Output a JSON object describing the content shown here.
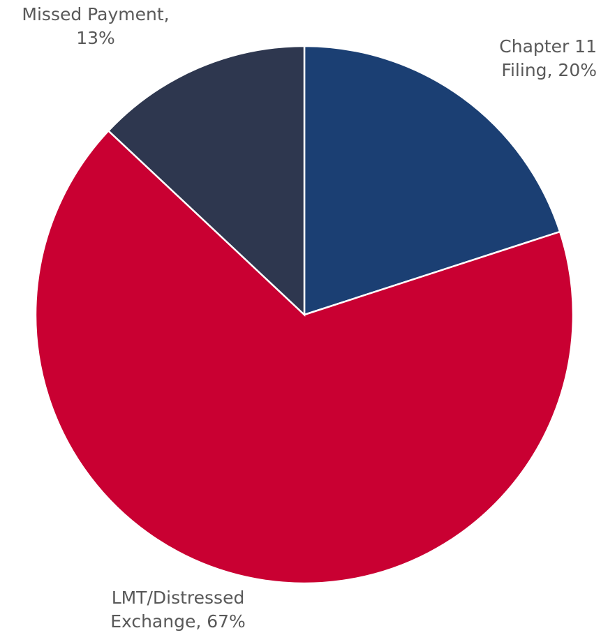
{
  "chart_data": {
    "type": "pie",
    "categories": [
      "Chapter 11 Filing",
      "LMT/Distressed Exchange",
      "Missed Payment"
    ],
    "values": [
      20,
      67,
      13
    ],
    "value_labels": [
      [
        "Chapter 11",
        "Filing, 20%"
      ],
      [
        "LMT/Distressed",
        "Exchange, 67%"
      ],
      [
        "Missed Payment,",
        "13%"
      ]
    ],
    "colors": [
      "#1b3f73",
      "#c90032",
      "#2e374f"
    ]
  }
}
